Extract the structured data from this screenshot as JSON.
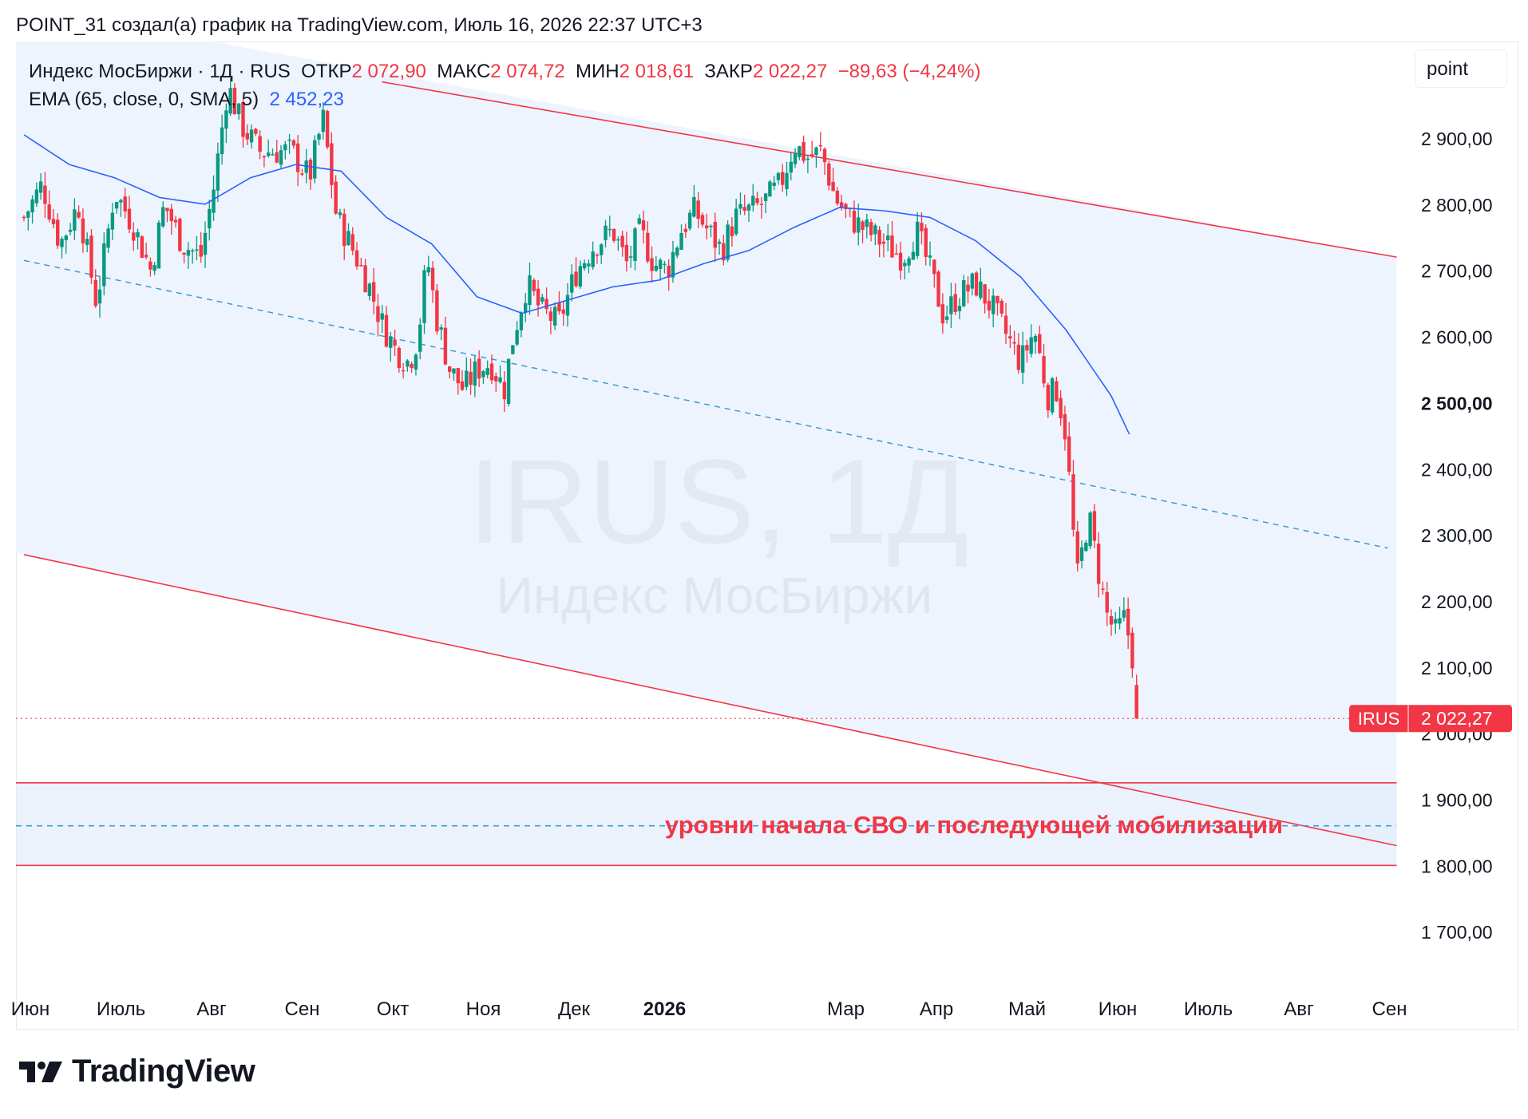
{
  "header": "POINT_31 создал(а) график на TradingView.com, Июль 16, 2026 22:37 UTC+3",
  "legend": {
    "symbol": "Индекс МосБиржи · 1Д · RUS",
    "open_label": "ОТКР",
    "open": "2 072,90",
    "high_label": "МАКС",
    "high": "2 074,72",
    "low_label": "МИН",
    "low": "2 018,61",
    "close_label": "ЗАКР",
    "close": "2 022,27",
    "change": "−89,63 (−4,24%)",
    "ema_label": "EMA (65, close, 0, SMA, 5)",
    "ema_value": "2 452,23"
  },
  "scale_button": "point",
  "watermark": {
    "line1": "IRUS, 1Д",
    "line2": "Индекс МосБиржи"
  },
  "annotation": "уровни начала СВО и последующей мобилизации",
  "price_tag": {
    "symbol": "IRUS",
    "value": "2 022,27"
  },
  "logo_text": "TradingView",
  "colors": {
    "up": "#089981",
    "down": "#f23645",
    "ema": "#2962ff",
    "channel": "#f23645",
    "fill": "#eef4fd",
    "dashed": "#3d9bd6"
  },
  "chart_data": {
    "type": "candlestick",
    "symbol": "IRUS",
    "timeframe": "1Д",
    "y_range": [
      1660,
      3000
    ],
    "y_ticks": [
      {
        "value": 2900,
        "label": "2 900,00"
      },
      {
        "value": 2800,
        "label": "2 800,00"
      },
      {
        "value": 2700,
        "label": "2 700,00"
      },
      {
        "value": 2600,
        "label": "2 600,00"
      },
      {
        "value": 2500,
        "label": "2 500,00"
      },
      {
        "value": 2400,
        "label": "2 400,00"
      },
      {
        "value": 2300,
        "label": "2 300,00"
      },
      {
        "value": 2200,
        "label": "2 200,00"
      },
      {
        "value": 2100,
        "label": "2 100,00"
      },
      {
        "value": 2000,
        "label": "2 000,00"
      },
      {
        "value": 1900,
        "label": "1 900,00"
      },
      {
        "value": 1800,
        "label": "1 800,00"
      },
      {
        "value": 1700,
        "label": "1 700,00"
      }
    ],
    "x_ticks": [
      {
        "month": 0,
        "label": "Июн",
        "bold": false
      },
      {
        "month": 1,
        "label": "Июль",
        "bold": false
      },
      {
        "month": 2,
        "label": "Авг",
        "bold": false
      },
      {
        "month": 3,
        "label": "Сен",
        "bold": false
      },
      {
        "month": 4,
        "label": "Окт",
        "bold": false
      },
      {
        "month": 5,
        "label": "Ноя",
        "bold": false
      },
      {
        "month": 6,
        "label": "Дек",
        "bold": false
      },
      {
        "month": 7,
        "label": "2026",
        "bold": true
      },
      {
        "month": 9,
        "label": "Мар",
        "bold": false
      },
      {
        "month": 10,
        "label": "Апр",
        "bold": false
      },
      {
        "month": 11,
        "label": "Май",
        "bold": false
      },
      {
        "month": 12,
        "label": "Июн",
        "bold": false
      },
      {
        "month": 13,
        "label": "Июль",
        "bold": false
      },
      {
        "month": 14,
        "label": "Авг",
        "bold": false
      },
      {
        "month": 15,
        "label": "Сен",
        "bold": false
      }
    ],
    "last_close": 2022.27,
    "close_anchors": [
      [
        0,
        2780
      ],
      [
        0.2,
        2830
      ],
      [
        0.4,
        2740
      ],
      [
        0.6,
        2800
      ],
      [
        0.8,
        2650
      ],
      [
        1.0,
        2820
      ],
      [
        1.2,
        2770
      ],
      [
        1.4,
        2700
      ],
      [
        1.55,
        2800
      ],
      [
        1.75,
        2740
      ],
      [
        1.95,
        2720
      ],
      [
        2.1,
        2830
      ],
      [
        2.25,
        2980
      ],
      [
        2.4,
        2920
      ],
      [
        2.6,
        2880
      ],
      [
        2.8,
        2880
      ],
      [
        2.95,
        2880
      ],
      [
        3.15,
        2840
      ],
      [
        3.3,
        2930
      ],
      [
        3.45,
        2780
      ],
      [
        3.6,
        2740
      ],
      [
        3.8,
        2680
      ],
      [
        3.95,
        2620
      ],
      [
        4.1,
        2580
      ],
      [
        4.25,
        2560
      ],
      [
        4.35,
        2600
      ],
      [
        4.45,
        2720
      ],
      [
        4.55,
        2630
      ],
      [
        4.7,
        2550
      ],
      [
        4.85,
        2520
      ],
      [
        5.0,
        2550
      ],
      [
        5.15,
        2560
      ],
      [
        5.3,
        2520
      ],
      [
        5.4,
        2600
      ],
      [
        5.55,
        2680
      ],
      [
        5.7,
        2640
      ],
      [
        5.9,
        2620
      ],
      [
        6.1,
        2700
      ],
      [
        6.3,
        2740
      ],
      [
        6.5,
        2760
      ],
      [
        6.65,
        2710
      ],
      [
        6.8,
        2760
      ],
      [
        6.95,
        2710
      ],
      [
        7.1,
        2700
      ],
      [
        7.25,
        2760
      ],
      [
        7.4,
        2790
      ],
      [
        7.55,
        2760
      ],
      [
        7.7,
        2730
      ],
      [
        7.85,
        2780
      ],
      [
        8.0,
        2790
      ],
      [
        8.15,
        2800
      ],
      [
        8.35,
        2830
      ],
      [
        8.5,
        2890
      ],
      [
        8.65,
        2870
      ],
      [
        8.8,
        2880
      ],
      [
        8.95,
        2810
      ],
      [
        9.1,
        2780
      ],
      [
        9.3,
        2760
      ],
      [
        9.5,
        2740
      ],
      [
        9.7,
        2720
      ],
      [
        9.85,
        2760
      ],
      [
        10.0,
        2700
      ],
      [
        10.15,
        2630
      ],
      [
        10.3,
        2660
      ],
      [
        10.5,
        2680
      ],
      [
        10.7,
        2640
      ],
      [
        10.85,
        2600
      ],
      [
        11.0,
        2560
      ],
      [
        11.15,
        2610
      ],
      [
        11.3,
        2510
      ],
      [
        11.4,
        2520
      ],
      [
        11.5,
        2450
      ],
      [
        11.62,
        2230
      ],
      [
        11.75,
        2330
      ],
      [
        11.85,
        2250
      ],
      [
        11.95,
        2180
      ],
      [
        12.05,
        2150
      ],
      [
        12.15,
        2175
      ],
      [
        12.25,
        2105
      ],
      [
        12.32,
        2022
      ]
    ],
    "ema_anchors": [
      [
        0,
        2905
      ],
      [
        0.5,
        2860
      ],
      [
        1.0,
        2840
      ],
      [
        1.5,
        2810
      ],
      [
        2.0,
        2800
      ],
      [
        2.5,
        2840
      ],
      [
        3.0,
        2860
      ],
      [
        3.5,
        2850
      ],
      [
        4.0,
        2780
      ],
      [
        4.5,
        2740
      ],
      [
        5.0,
        2660
      ],
      [
        5.5,
        2635
      ],
      [
        6.0,
        2655
      ],
      [
        6.5,
        2675
      ],
      [
        7.0,
        2685
      ],
      [
        7.5,
        2710
      ],
      [
        8.0,
        2730
      ],
      [
        8.5,
        2765
      ],
      [
        9.0,
        2795
      ],
      [
        9.5,
        2790
      ],
      [
        10.0,
        2780
      ],
      [
        10.5,
        2745
      ],
      [
        11.0,
        2690
      ],
      [
        11.5,
        2610
      ],
      [
        12.0,
        2510
      ],
      [
        12.2,
        2452
      ]
    ],
    "channel_upper": [
      [
        3.95,
        2985
      ],
      [
        15.15,
        2720
      ]
    ],
    "channel_dashed": [
      [
        0,
        2715
      ],
      [
        15.05,
        2280
      ]
    ],
    "channel_lower": [
      [
        0,
        2270
      ],
      [
        15.15,
        1830
      ]
    ],
    "horizontal_levels": [
      {
        "value": 1925,
        "style": "solid"
      },
      {
        "value": 1860,
        "style": "dashed"
      },
      {
        "value": 1800,
        "style": "solid"
      }
    ]
  }
}
